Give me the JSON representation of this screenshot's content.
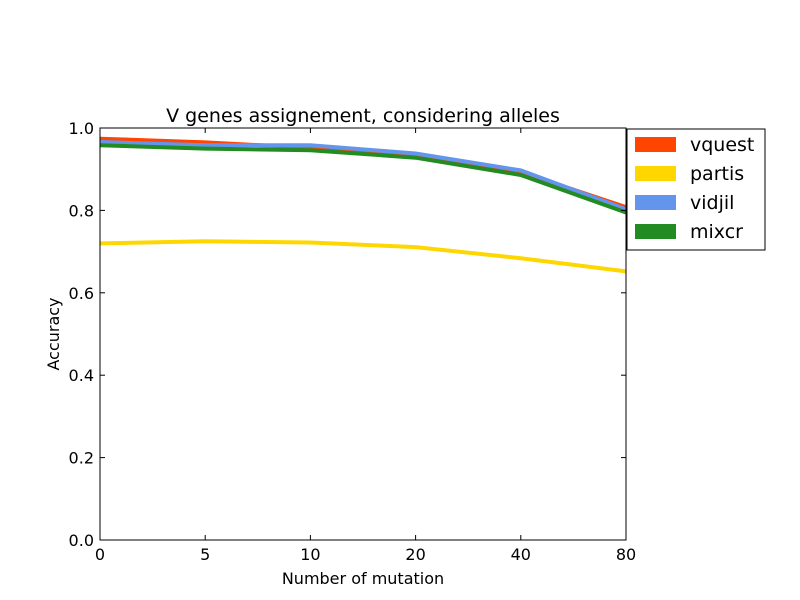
{
  "chart_data": {
    "type": "line",
    "title": "V genes assignement, considering alleles",
    "xlabel": "Number of mutation",
    "ylabel": "Accuracy",
    "categories": [
      "0",
      "5",
      "10",
      "20",
      "40",
      "80"
    ],
    "ylim": [
      0.0,
      1.0
    ],
    "yticks": [
      "0.0",
      "0.2",
      "0.4",
      "0.6",
      "0.8",
      "1.0"
    ],
    "grid": false,
    "legend_position": "outside right, top",
    "series": [
      {
        "name": "vquest",
        "color": "#ff4500",
        "values": [
          0.974,
          0.965,
          0.952,
          0.933,
          0.893,
          0.808
        ]
      },
      {
        "name": "partis",
        "color": "#ffd700",
        "values": [
          0.72,
          0.725,
          0.722,
          0.711,
          0.684,
          0.652
        ]
      },
      {
        "name": "vidjil",
        "color": "#6495ed",
        "values": [
          0.966,
          0.958,
          0.958,
          0.938,
          0.897,
          0.803
        ]
      },
      {
        "name": "mixcr",
        "color": "#228b22",
        "values": [
          0.958,
          0.95,
          0.946,
          0.928,
          0.886,
          0.795
        ]
      }
    ]
  }
}
